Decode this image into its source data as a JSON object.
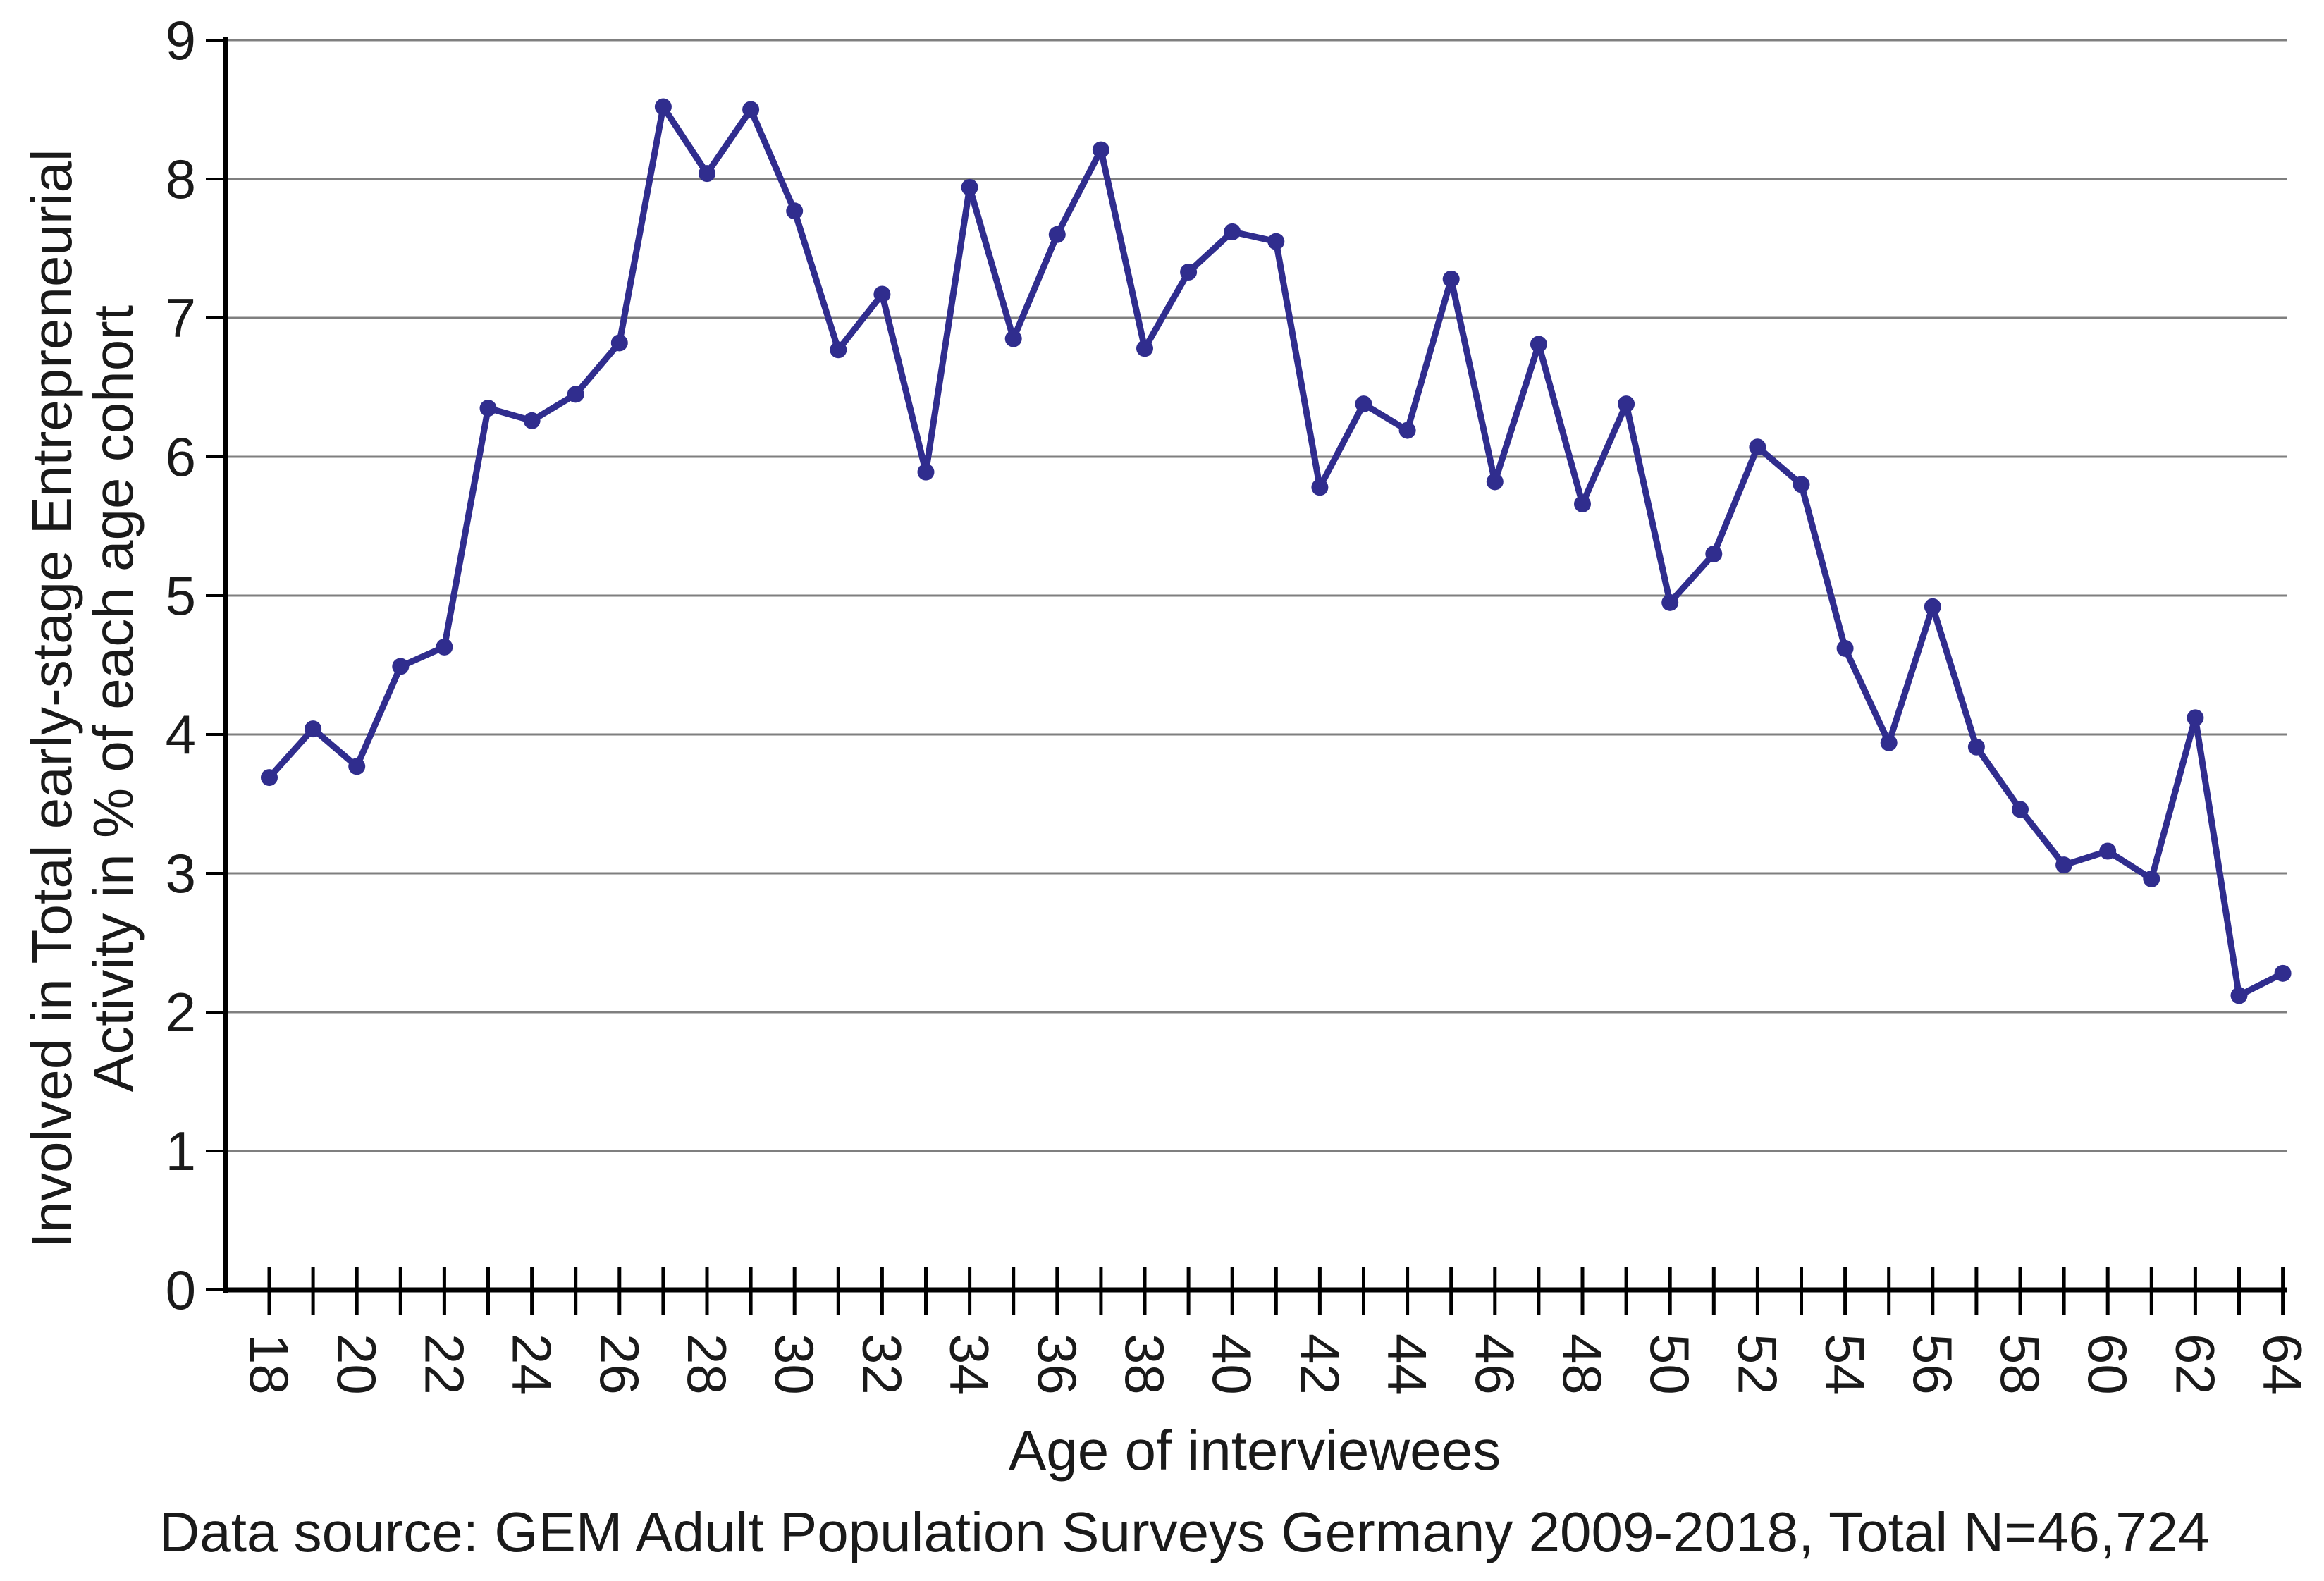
{
  "chart_data": {
    "type": "line",
    "title": "",
    "xlabel": "Age of interviewees",
    "ylabel_line1": "Involved in Total early-stage Entrepreneurial",
    "ylabel_line2": "Activity in % of each age cohort",
    "caption": "Data source: GEM Adult Population Surveys Germany 2009-2018, Total N=46,724",
    "x": [
      18,
      19,
      20,
      21,
      22,
      23,
      24,
      25,
      26,
      27,
      28,
      29,
      30,
      31,
      32,
      33,
      34,
      35,
      36,
      37,
      38,
      39,
      40,
      41,
      42,
      43,
      44,
      45,
      46,
      47,
      48,
      49,
      50,
      51,
      52,
      53,
      54,
      55,
      56,
      57,
      58,
      59,
      60,
      61,
      62,
      63,
      64
    ],
    "values": [
      3.69,
      4.04,
      3.77,
      4.49,
      4.63,
      6.35,
      6.26,
      6.45,
      6.82,
      8.52,
      8.04,
      8.5,
      7.77,
      6.77,
      7.17,
      5.89,
      7.94,
      6.85,
      7.6,
      8.21,
      6.78,
      7.33,
      7.62,
      7.55,
      5.78,
      6.38,
      6.19,
      7.28,
      5.82,
      6.81,
      5.66,
      6.38,
      4.95,
      5.3,
      6.07,
      5.8,
      4.62,
      3.94,
      4.92,
      3.91,
      3.46,
      3.06,
      3.16,
      2.96,
      4.12,
      2.12,
      2.28
    ],
    "ylim": [
      0,
      9
    ],
    "yticklabels": [
      "0",
      "1",
      "2",
      "3",
      "4",
      "5",
      "6",
      "7",
      "8",
      "9"
    ],
    "xticklabels": [
      "18",
      "20",
      "22",
      "24",
      "26",
      "28",
      "30",
      "32",
      "34",
      "36",
      "38",
      "40",
      "42",
      "44",
      "46",
      "48",
      "50",
      "52",
      "54",
      "56",
      "58",
      "60",
      "62",
      "64"
    ],
    "xtick_label_step": 2,
    "grid": "horizontal",
    "legend": "none",
    "marker": "circle",
    "line_color": "#302d8e",
    "gridline_color": "#7f7f7f",
    "axis_color": "#000000",
    "text_color": "#1a1a1a",
    "background_color": "#ffffff"
  }
}
